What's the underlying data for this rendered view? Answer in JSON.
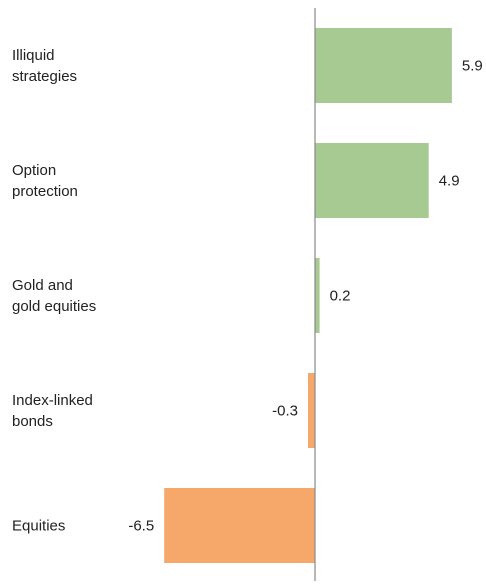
{
  "chart_data": {
    "type": "bar",
    "orientation": "horizontal",
    "categories": [
      [
        "Illiquid",
        "strategies"
      ],
      [
        "Option",
        "protection"
      ],
      [
        "Gold and",
        "gold equities"
      ],
      [
        "Index-linked",
        "bonds"
      ],
      [
        "Equities"
      ]
    ],
    "values": [
      5.9,
      4.9,
      0.2,
      -0.3,
      -6.5
    ],
    "value_labels": [
      "5.9",
      "4.9",
      "0.2",
      "-0.3",
      "-6.5"
    ],
    "xlim": [
      -6.5,
      6.5
    ],
    "grid": false,
    "colors": {
      "positive": "#a7ca93",
      "negative": "#f5a86a",
      "axis": "#888888"
    }
  }
}
